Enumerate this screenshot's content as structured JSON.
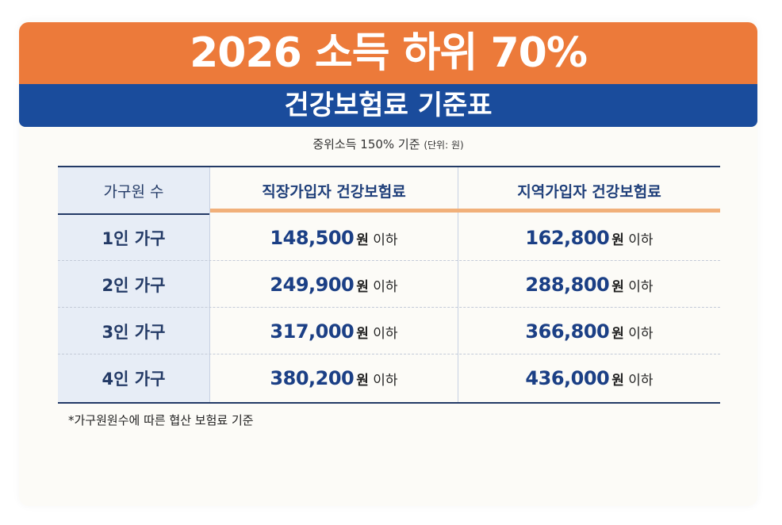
{
  "title": {
    "main": "2026 소득 하위 70%",
    "sub": "건강보험료 기준표"
  },
  "caption": {
    "main": "중위소득 150% 기준",
    "unit_note": "(단위: 원)"
  },
  "table": {
    "headers": [
      "가구원 수",
      "직장가입자 건강보험료",
      "지역가입자 건강보험료"
    ],
    "won_label": "원",
    "suffix_label": "이하",
    "rows": [
      {
        "label": "1인 가구",
        "employee": "148,500",
        "regional": "162,800"
      },
      {
        "label": "2인 가구",
        "employee": "249,900",
        "regional": "288,800"
      },
      {
        "label": "3인 가구",
        "employee": "317,000",
        "regional": "366,800"
      },
      {
        "label": "4인 가구",
        "employee": "380,200",
        "regional": "436,000"
      }
    ]
  },
  "footnote": "*가구원원수에 따른 협산 보험료 기준",
  "colors": {
    "orange": "#ec7a3a",
    "navy": "#1a4c9c",
    "header_underline": "#f1b07a",
    "amount_text": "#1b3f85"
  }
}
